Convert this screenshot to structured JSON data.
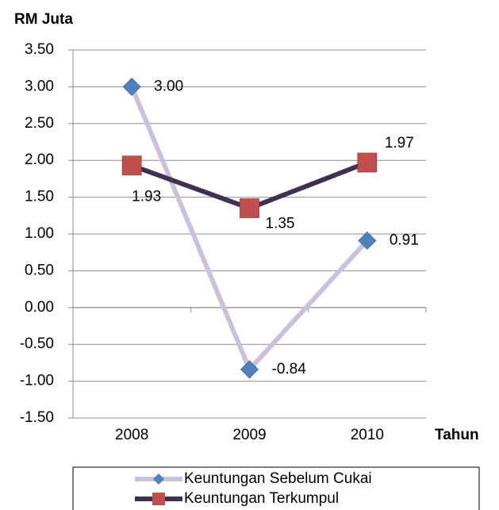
{
  "chart_data": {
    "type": "line",
    "y_label": "RM Juta",
    "x_label": "Tahun",
    "categories": [
      "2008",
      "2009",
      "2010"
    ],
    "series": [
      {
        "name": "Keuntungan Sebelum Cukai",
        "color": "#ccc0da",
        "marker": "diamond",
        "marker_color": "#4f81bd",
        "values": [
          3.0,
          -0.84,
          0.91
        ],
        "value_labels": [
          "3.00",
          "-0.84",
          "0.91"
        ]
      },
      {
        "name": "Keuntungan Terkumpul",
        "color": "#403152",
        "marker": "square",
        "marker_color": "#c0504d",
        "values": [
          1.93,
          1.35,
          1.97
        ],
        "value_labels": [
          "1.93",
          "1.35",
          "1.97"
        ]
      }
    ],
    "ylim": [
      -1.5,
      3.5
    ],
    "yticks": [
      {
        "value": -1.5,
        "label": "-1.50"
      },
      {
        "value": -1.0,
        "label": "-1.00"
      },
      {
        "value": -0.5,
        "label": "-0.50"
      },
      {
        "value": 0,
        "label": "0.00"
      },
      {
        "value": 0.5,
        "label": "0.50"
      },
      {
        "value": 1.0,
        "label": "1.00"
      },
      {
        "value": 1.5,
        "label": "1.50"
      },
      {
        "value": 2.0,
        "label": "2.00"
      },
      {
        "value": 2.5,
        "label": "2.50"
      },
      {
        "value": 3.0,
        "label": "3.00"
      },
      {
        "value": 3.5,
        "label": "3.50"
      }
    ],
    "grid": true,
    "legend": "bottom"
  }
}
